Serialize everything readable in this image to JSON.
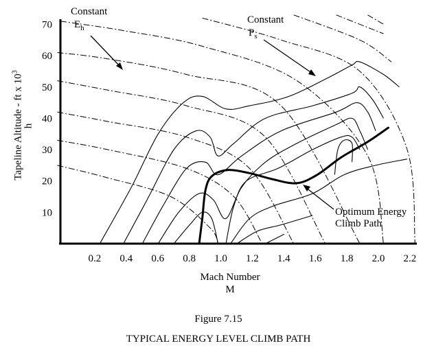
{
  "chart_data": {
    "type": "line",
    "xlabel": "Mach Number",
    "xlabel_symbol": "M",
    "ylabel": "Tapeline Altitude - ft x 10",
    "ylabel_exponent": "3",
    "ylabel_symbol": "h",
    "x_ticks": [
      "0.2",
      "0.4",
      "0.6",
      "0.8",
      "1.0",
      "1.2",
      "1.4",
      "1.6",
      "1.8",
      "2.0",
      "2.2"
    ],
    "y_ticks": [
      "10",
      "20",
      "30",
      "40",
      "50",
      "60",
      "70"
    ],
    "xlim": [
      0.0,
      2.3
    ],
    "ylim": [
      0,
      70
    ],
    "grid": false,
    "annotations": {
      "constant_eh": "Constant",
      "constant_eh_symbol": "E",
      "constant_eh_sub": "h",
      "constant_ps": "Constant",
      "constant_ps_symbol": "P",
      "constant_ps_sub": "s",
      "optimum_line1": "Optimum Energy",
      "optimum_line2": "Climb Path"
    },
    "optimum_energy_climb_path": [
      {
        "x": 0.88,
        "y": 0
      },
      {
        "x": 0.9,
        "y": 8
      },
      {
        "x": 0.92,
        "y": 17
      },
      {
        "x": 0.96,
        "y": 21.5
      },
      {
        "x": 1.06,
        "y": 23.5
      },
      {
        "x": 1.2,
        "y": 22.5
      },
      {
        "x": 1.35,
        "y": 20.5
      },
      {
        "x": 1.5,
        "y": 19.3
      },
      {
        "x": 1.63,
        "y": 22
      },
      {
        "x": 1.78,
        "y": 27.5
      },
      {
        "x": 1.95,
        "y": 32.5
      },
      {
        "x": 2.08,
        "y": 37
      }
    ],
    "constant_energy_height_lines": [
      [
        {
          "x": -0.02,
          "y": 25
        },
        {
          "x": 0.3,
          "y": 21
        },
        {
          "x": 0.7,
          "y": 15
        },
        {
          "x": 0.95,
          "y": 5
        },
        {
          "x": 1.0,
          "y": 0
        }
      ],
      [
        {
          "x": -0.02,
          "y": 33
        },
        {
          "x": 0.3,
          "y": 30
        },
        {
          "x": 0.8,
          "y": 24
        },
        {
          "x": 1.1,
          "y": 15
        },
        {
          "x": 1.28,
          "y": 0
        }
      ],
      [
        {
          "x": -0.02,
          "y": 42
        },
        {
          "x": 0.3,
          "y": 39
        },
        {
          "x": 0.8,
          "y": 34
        },
        {
          "x": 1.2,
          "y": 24
        },
        {
          "x": 1.48,
          "y": 0
        }
      ],
      [
        {
          "x": -0.02,
          "y": 52
        },
        {
          "x": 0.3,
          "y": 49
        },
        {
          "x": 0.8,
          "y": 44
        },
        {
          "x": 1.3,
          "y": 34
        },
        {
          "x": 1.68,
          "y": 0
        }
      ],
      [
        {
          "x": -0.02,
          "y": 61
        },
        {
          "x": 0.3,
          "y": 59
        },
        {
          "x": 0.8,
          "y": 54
        },
        {
          "x": 1.4,
          "y": 44
        },
        {
          "x": 1.9,
          "y": 0
        }
      ],
      [
        {
          "x": 0.0,
          "y": 71
        },
        {
          "x": 0.4,
          "y": 68
        },
        {
          "x": 0.9,
          "y": 63
        },
        {
          "x": 1.5,
          "y": 52
        },
        {
          "x": 1.95,
          "y": 28
        },
        {
          "x": 2.05,
          "y": 0
        }
      ],
      [
        {
          "x": 0.9,
          "y": 72
        },
        {
          "x": 1.4,
          "y": 65
        },
        {
          "x": 1.9,
          "y": 55
        },
        {
          "x": 2.2,
          "y": 30
        },
        {
          "x": 2.25,
          "y": 0
        }
      ],
      [
        {
          "x": 1.48,
          "y": 73
        },
        {
          "x": 1.9,
          "y": 65
        },
        {
          "x": 2.1,
          "y": 58
        }
      ],
      [
        {
          "x": 1.75,
          "y": 73
        },
        {
          "x": 2.05,
          "y": 67
        }
      ],
      [
        {
          "x": 1.95,
          "y": 73
        },
        {
          "x": 2.05,
          "y": 70
        }
      ]
    ],
    "constant_specific_excess_power_contours": [
      [
        {
          "x": 0.25,
          "y": 0
        },
        {
          "x": 0.45,
          "y": 18
        },
        {
          "x": 0.62,
          "y": 35
        },
        {
          "x": 0.78,
          "y": 45
        },
        {
          "x": 0.9,
          "y": 47
        },
        {
          "x": 1.05,
          "y": 43
        },
        {
          "x": 1.2,
          "y": 44
        },
        {
          "x": 1.45,
          "y": 47
        },
        {
          "x": 1.7,
          "y": 53
        },
        {
          "x": 1.85,
          "y": 57
        },
        {
          "x": 1.9,
          "y": 58
        },
        {
          "x": 2.05,
          "y": 54
        },
        {
          "x": 2.15,
          "y": 50
        }
      ],
      [
        {
          "x": 0.4,
          "y": 0
        },
        {
          "x": 0.55,
          "y": 14
        },
        {
          "x": 0.72,
          "y": 30
        },
        {
          "x": 0.86,
          "y": 36
        },
        {
          "x": 0.95,
          "y": 34
        },
        {
          "x": 1.0,
          "y": 28
        },
        {
          "x": 1.1,
          "y": 32
        },
        {
          "x": 1.3,
          "y": 40
        },
        {
          "x": 1.6,
          "y": 44
        },
        {
          "x": 1.85,
          "y": 48
        },
        {
          "x": 1.9,
          "y": 50
        },
        {
          "x": 1.98,
          "y": 46
        },
        {
          "x": 2.05,
          "y": 40
        }
      ],
      [
        {
          "x": 0.52,
          "y": 0
        },
        {
          "x": 0.65,
          "y": 12
        },
        {
          "x": 0.8,
          "y": 24
        },
        {
          "x": 0.92,
          "y": 26
        },
        {
          "x": 1.0,
          "y": 22
        },
        {
          "x": 1.15,
          "y": 28
        },
        {
          "x": 1.4,
          "y": 36
        },
        {
          "x": 1.75,
          "y": 42
        },
        {
          "x": 1.88,
          "y": 45
        },
        {
          "x": 1.95,
          "y": 42
        },
        {
          "x": 2.0,
          "y": 36
        }
      ],
      [
        {
          "x": 0.62,
          "y": 0
        },
        {
          "x": 0.75,
          "y": 10
        },
        {
          "x": 0.88,
          "y": 16
        },
        {
          "x": 0.97,
          "y": 14
        },
        {
          "x": 1.05,
          "y": 8
        },
        {
          "x": 1.15,
          "y": 18
        },
        {
          "x": 1.3,
          "y": 26
        },
        {
          "x": 1.5,
          "y": 32
        },
        {
          "x": 1.75,
          "y": 38
        },
        {
          "x": 1.85,
          "y": 40
        },
        {
          "x": 1.9,
          "y": 36
        },
        {
          "x": 1.95,
          "y": 30
        }
      ],
      [
        {
          "x": 0.72,
          "y": 0
        },
        {
          "x": 0.82,
          "y": 6
        },
        {
          "x": 0.9,
          "y": 10
        },
        {
          "x": 0.96,
          "y": 8
        },
        {
          "x": 1.0,
          "y": 0
        }
      ],
      [
        {
          "x": 1.05,
          "y": 0
        },
        {
          "x": 1.1,
          "y": 12
        },
        {
          "x": 1.18,
          "y": 20
        },
        {
          "x": 1.38,
          "y": 24
        },
        {
          "x": 1.6,
          "y": 30
        },
        {
          "x": 1.78,
          "y": 34
        },
        {
          "x": 1.85,
          "y": 34
        },
        {
          "x": 1.9,
          "y": 30
        }
      ],
      [
        {
          "x": 1.08,
          "y": 0
        },
        {
          "x": 1.2,
          "y": 8
        },
        {
          "x": 1.35,
          "y": 12
        },
        {
          "x": 1.6,
          "y": 16
        },
        {
          "x": 1.8,
          "y": 22
        },
        {
          "x": 2.0,
          "y": 25
        },
        {
          "x": 2.2,
          "y": 27
        }
      ],
      [
        {
          "x": 1.12,
          "y": 0
        },
        {
          "x": 1.25,
          "y": 4
        },
        {
          "x": 1.4,
          "y": 6
        },
        {
          "x": 1.6,
          "y": 9
        }
      ],
      [
        {
          "x": 1.3,
          "y": 0
        },
        {
          "x": 1.42,
          "y": 3
        }
      ],
      [
        {
          "x": 1.74,
          "y": 22
        },
        {
          "x": 1.76,
          "y": 30
        },
        {
          "x": 1.8,
          "y": 33
        },
        {
          "x": 1.85,
          "y": 32
        },
        {
          "x": 1.85,
          "y": 26
        }
      ]
    ]
  },
  "figure": {
    "number": "Figure 7.15",
    "caption": "TYPICAL ENERGY LEVEL CLIMB PATH"
  }
}
